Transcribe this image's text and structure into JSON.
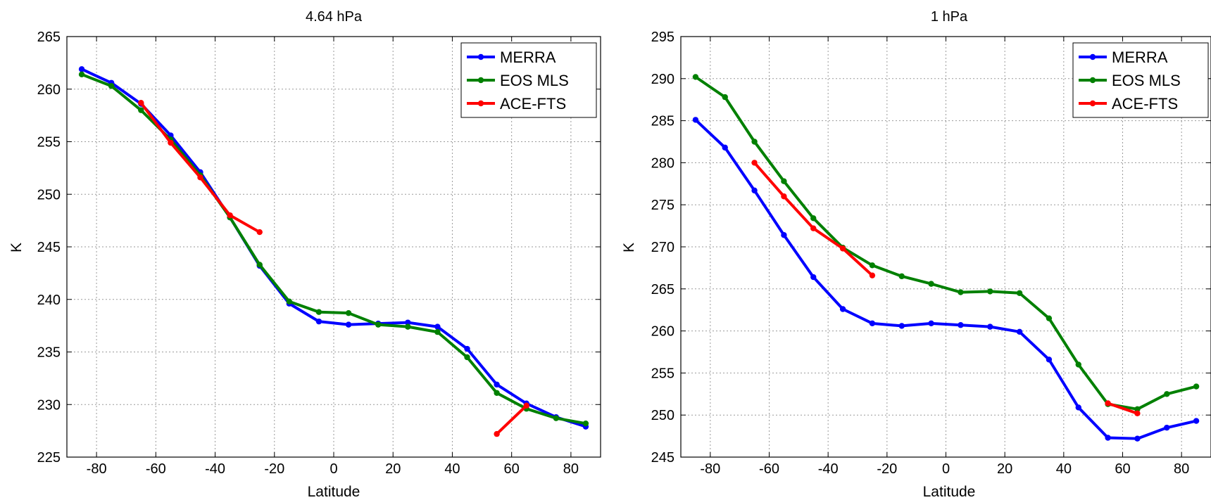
{
  "chart_data": [
    {
      "type": "line",
      "title": "4.64 hPa",
      "xlabel": "Latitude",
      "ylabel": "K",
      "xlim": [
        -90,
        90
      ],
      "ylim": [
        225,
        265
      ],
      "xticks": [
        -80,
        -60,
        -40,
        -20,
        0,
        20,
        40,
        60,
        80
      ],
      "yticks": [
        225,
        230,
        235,
        240,
        245,
        250,
        255,
        260,
        265
      ],
      "grid": true,
      "legend_position": "top-right",
      "series": [
        {
          "name": "MERRA",
          "color": "#0000ff",
          "x": [
            -85,
            -75,
            -65,
            -55,
            -45,
            -35,
            -25,
            -15,
            -5,
            5,
            15,
            25,
            35,
            45,
            55,
            65,
            75,
            85
          ],
          "y": [
            261.9,
            260.6,
            258.6,
            255.6,
            252.1,
            247.8,
            243.2,
            239.6,
            237.9,
            237.6,
            237.7,
            237.8,
            237.4,
            235.3,
            231.9,
            230.1,
            228.8,
            227.9
          ]
        },
        {
          "name": "EOS MLS",
          "color": "#008000",
          "x": [
            -85,
            -75,
            -65,
            -55,
            -45,
            -35,
            -25,
            -15,
            -5,
            5,
            15,
            25,
            35,
            45,
            55,
            65,
            75,
            85
          ],
          "y": [
            261.4,
            260.3,
            258.0,
            255.2,
            251.8,
            247.8,
            243.3,
            239.8,
            238.8,
            238.7,
            237.6,
            237.4,
            236.9,
            234.5,
            231.1,
            229.6,
            228.7,
            228.2
          ]
        },
        {
          "name": "ACE-FTS",
          "color": "#ff0000",
          "x": [
            -65,
            -55,
            -45,
            -35,
            -25,
            55,
            65
          ],
          "y": [
            258.7,
            254.9,
            251.6,
            248.0,
            246.4,
            227.2,
            229.9
          ],
          "breaks_after": [
            4
          ]
        }
      ]
    },
    {
      "type": "line",
      "title": "1 hPa",
      "xlabel": "Latitude",
      "ylabel": "K",
      "xlim": [
        -90,
        90
      ],
      "ylim": [
        245,
        295
      ],
      "xticks": [
        -80,
        -60,
        -40,
        -20,
        0,
        20,
        40,
        60,
        80
      ],
      "yticks": [
        245,
        250,
        255,
        260,
        265,
        270,
        275,
        280,
        285,
        290,
        295
      ],
      "grid": true,
      "legend_position": "top-right",
      "series": [
        {
          "name": "MERRA",
          "color": "#0000ff",
          "x": [
            -85,
            -75,
            -65,
            -55,
            -45,
            -35,
            -25,
            -15,
            -5,
            5,
            15,
            25,
            35,
            45,
            55,
            65,
            75,
            85
          ],
          "y": [
            285.1,
            281.8,
            276.7,
            271.4,
            266.4,
            262.6,
            260.9,
            260.6,
            260.9,
            260.7,
            260.5,
            259.9,
            256.6,
            250.9,
            247.3,
            247.2,
            248.5,
            249.3
          ]
        },
        {
          "name": "EOS MLS",
          "color": "#008000",
          "x": [
            -85,
            -75,
            -65,
            -55,
            -45,
            -35,
            -25,
            -15,
            -5,
            5,
            15,
            25,
            35,
            45,
            55,
            65,
            75,
            85
          ],
          "y": [
            290.2,
            287.8,
            282.5,
            277.8,
            273.4,
            269.9,
            267.8,
            266.5,
            265.6,
            264.6,
            264.7,
            264.5,
            261.5,
            256.0,
            251.3,
            250.7,
            252.5,
            253.4
          ]
        },
        {
          "name": "ACE-FTS",
          "color": "#ff0000",
          "x": [
            -65,
            -55,
            -45,
            -35,
            -25,
            55,
            65
          ],
          "y": [
            280.0,
            276.0,
            272.2,
            269.8,
            266.6,
            251.4,
            250.2
          ],
          "breaks_after": [
            4
          ]
        }
      ]
    }
  ]
}
